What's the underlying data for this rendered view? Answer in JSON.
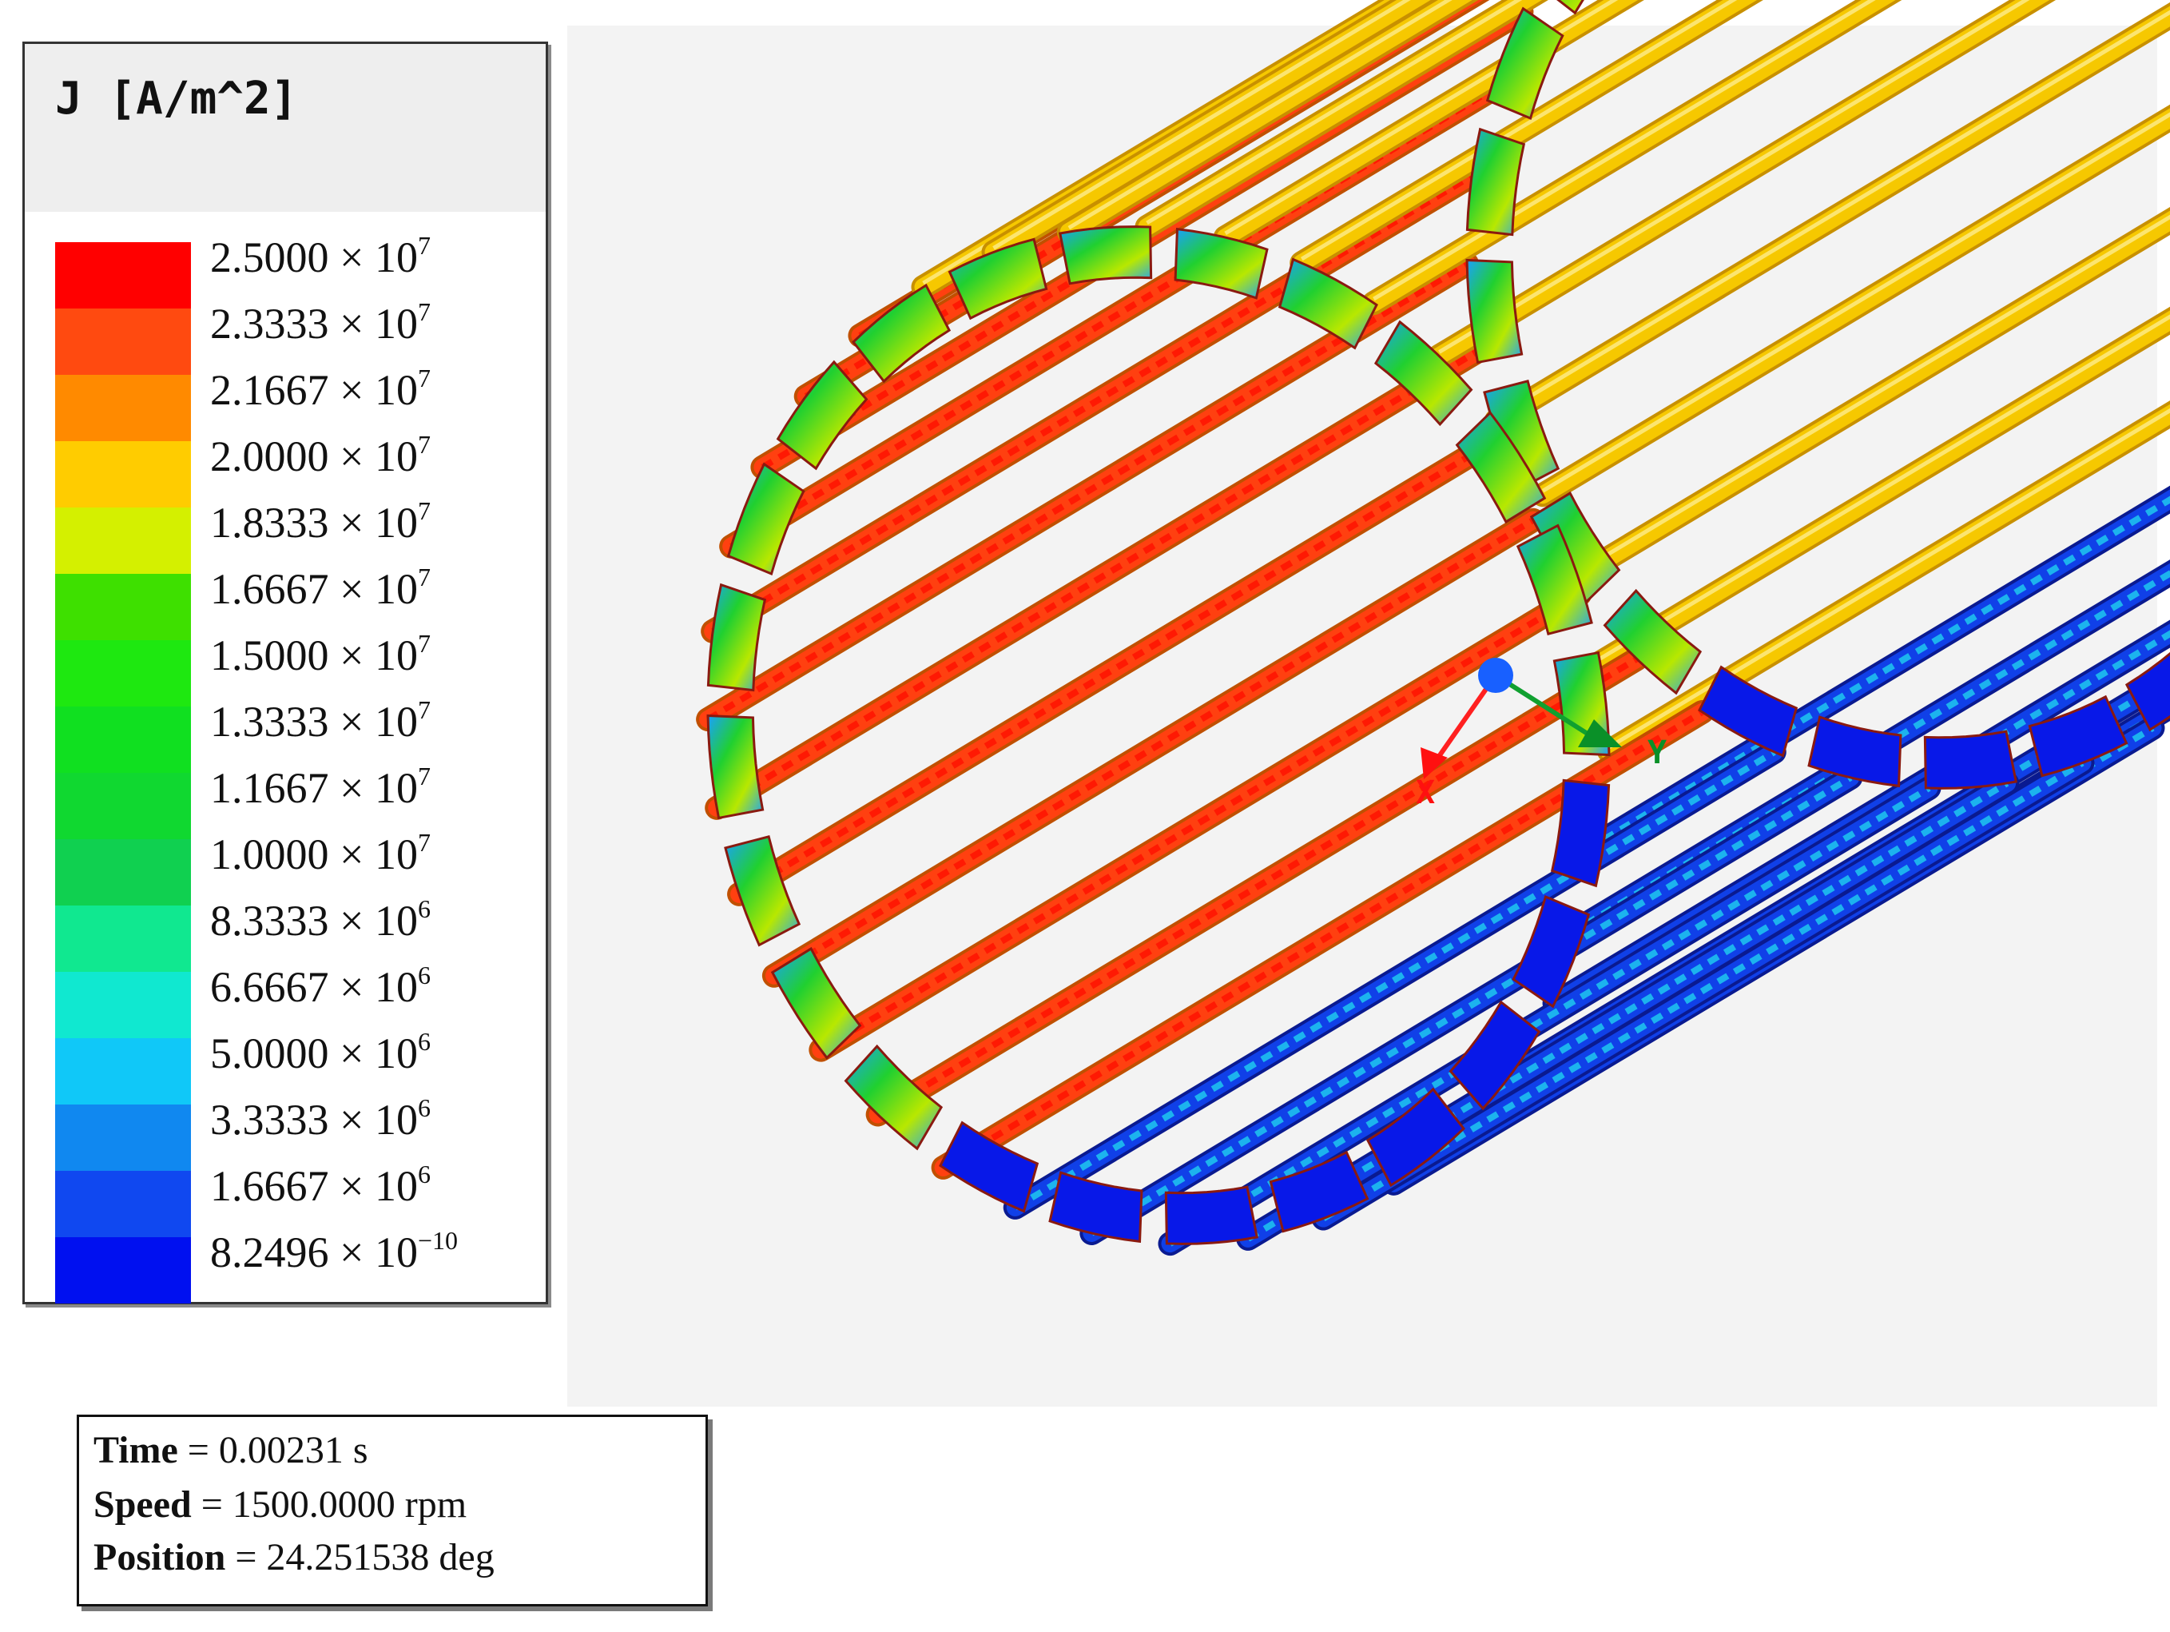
{
  "legend": {
    "title": "J [A/m^2]",
    "entries": [
      {
        "mantissa": "2.5000",
        "exp": "7",
        "color": "#ff0000"
      },
      {
        "mantissa": "2.3333",
        "exp": "7",
        "color": "#ff4a10"
      },
      {
        "mantissa": "2.1667",
        "exp": "7",
        "color": "#ff8a00"
      },
      {
        "mantissa": "2.0000",
        "exp": "7",
        "color": "#ffcc00"
      },
      {
        "mantissa": "1.8333",
        "exp": "7",
        "color": "#d4f000"
      },
      {
        "mantissa": "1.6667",
        "exp": "7",
        "color": "#3ee000"
      },
      {
        "mantissa": "1.5000",
        "exp": "7",
        "color": "#1ee810"
      },
      {
        "mantissa": "1.3333",
        "exp": "7",
        "color": "#10e020"
      },
      {
        "mantissa": "1.1667",
        "exp": "7",
        "color": "#10d830"
      },
      {
        "mantissa": "1.0000",
        "exp": "7",
        "color": "#10d050"
      },
      {
        "mantissa": "8.3333",
        "exp": "6",
        "color": "#10e890"
      },
      {
        "mantissa": "6.6667",
        "exp": "6",
        "color": "#10e8d0"
      },
      {
        "mantissa": "5.0000",
        "exp": "6",
        "color": "#10c8f8"
      },
      {
        "mantissa": "3.3333",
        "exp": "6",
        "color": "#1088f0"
      },
      {
        "mantissa": "1.6667",
        "exp": "6",
        "color": "#1048f0"
      },
      {
        "mantissa": "8.2496",
        "exp": "−10",
        "color": "#0010f0"
      }
    ],
    "times_sign": "×",
    "base": "10"
  },
  "axes": {
    "x_label": "X",
    "y_label": "Y"
  },
  "info": {
    "time_key": "Time",
    "time_value": " = 0.00231 s",
    "speed_key": "Speed",
    "speed_value": " = 1500.0000 rpm",
    "position_key": "Position",
    "position_value": " = 24.251538 deg"
  }
}
